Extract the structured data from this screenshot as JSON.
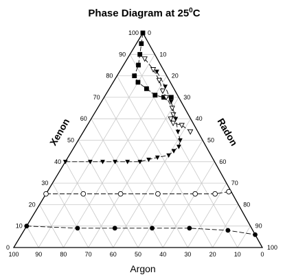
{
  "chart_data": {
    "type": "scatter",
    "subtype": "ternary",
    "title": "Phase Diagram at 25",
    "title_superscript": "0",
    "title_suffix": "C",
    "axes": {
      "bottom": {
        "label": "Argon",
        "ticks": [
          100,
          90,
          80,
          70,
          60,
          50,
          40,
          30,
          20,
          10,
          0
        ]
      },
      "left": {
        "label": "Xenon",
        "ticks": [
          0,
          10,
          20,
          30,
          40,
          50,
          60,
          70,
          80,
          90,
          100
        ]
      },
      "right": {
        "label": "Radon",
        "ticks": [
          0,
          10,
          20,
          30,
          40,
          50,
          60,
          70,
          80,
          90,
          100
        ]
      }
    },
    "grid": true,
    "grid_step": 10,
    "series": [
      {
        "marker": "filled-square",
        "points": [
          {
            "xenon": 100,
            "radon": 0
          },
          {
            "xenon": 95,
            "radon": 2
          },
          {
            "xenon": 90,
            "radon": 4
          },
          {
            "xenon": 85,
            "radon": 6
          },
          {
            "xenon": 80,
            "radon": 7
          },
          {
            "xenon": 77,
            "radon": 10
          },
          {
            "xenon": 74,
            "radon": 15
          },
          {
            "xenon": 71,
            "radon": 20
          },
          {
            "xenon": 70,
            "radon": 24
          },
          {
            "xenon": 70,
            "radon": 27
          }
        ]
      },
      {
        "marker": "open-triangle-down",
        "points": [
          {
            "xenon": 88,
            "radon": 7
          },
          {
            "xenon": 83,
            "radon": 13
          },
          {
            "xenon": 78,
            "radon": 18
          },
          {
            "xenon": 73,
            "radon": 22
          },
          {
            "xenon": 70,
            "radon": 25
          },
          {
            "xenon": 65,
            "radon": 30
          },
          {
            "xenon": 62,
            "radon": 32
          },
          {
            "xenon": 60,
            "radon": 32
          },
          {
            "xenon": 58,
            "radon": 34
          },
          {
            "xenon": 57,
            "radon": 38
          },
          {
            "xenon": 54,
            "radon": 43
          }
        ]
      },
      {
        "marker": "filled-triangle-down",
        "points": [
          {
            "xenon": 82,
            "radon": 15
          },
          {
            "xenon": 75,
            "radon": 22
          },
          {
            "xenon": 68,
            "radon": 28
          },
          {
            "xenon": 60,
            "radon": 34
          },
          {
            "xenon": 54,
            "radon": 38
          },
          {
            "xenon": 50,
            "radon": 41
          },
          {
            "xenon": 47,
            "radon": 42
          },
          {
            "xenon": 45,
            "radon": 41
          },
          {
            "xenon": 43,
            "radon": 40
          },
          {
            "xenon": 42,
            "radon": 36
          },
          {
            "xenon": 41,
            "radon": 33
          },
          {
            "xenon": 40,
            "radon": 30
          },
          {
            "xenon": 40,
            "radon": 25
          },
          {
            "xenon": 40,
            "radon": 20
          },
          {
            "xenon": 40,
            "radon": 15
          },
          {
            "xenon": 40,
            "radon": 10
          },
          {
            "xenon": 40,
            "radon": 0
          }
        ]
      },
      {
        "marker": "open-circle",
        "points": [
          {
            "xenon": 25,
            "radon": 0
          },
          {
            "xenon": 25,
            "radon": 15
          },
          {
            "xenon": 25,
            "radon": 30
          },
          {
            "xenon": 25,
            "radon": 45
          },
          {
            "xenon": 25,
            "radon": 60
          },
          {
            "xenon": 25,
            "radon": 68
          },
          {
            "xenon": 26,
            "radon": 73
          }
        ]
      },
      {
        "marker": "filled-circle",
        "points": [
          {
            "xenon": 10,
            "radon": 0
          },
          {
            "xenon": 9,
            "radon": 21
          },
          {
            "xenon": 9,
            "radon": 36
          },
          {
            "xenon": 9,
            "radon": 51
          },
          {
            "xenon": 9,
            "radon": 66
          },
          {
            "xenon": 8,
            "radon": 82
          },
          {
            "xenon": 6,
            "radon": 94
          }
        ]
      }
    ]
  }
}
